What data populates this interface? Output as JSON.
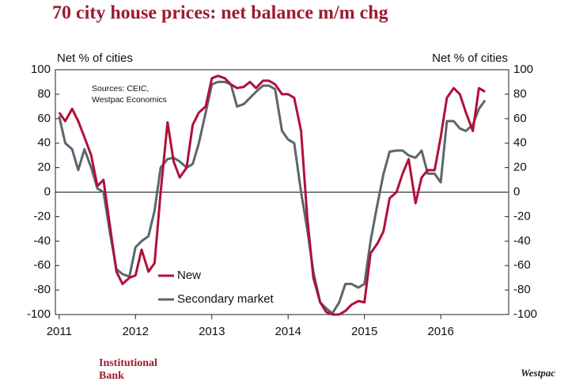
{
  "chart_data": {
    "type": "line",
    "title": "70 city house prices: net balance m/m chg",
    "y_label": "Net % of cities",
    "y2_label": "Net % of cities",
    "annotation": [
      "Sources: CEIC,",
      "Westpac Economics"
    ],
    "x": [
      2011,
      2011.08,
      2011.17,
      2011.25,
      2011.33,
      2011.42,
      2011.5,
      2011.58,
      2011.67,
      2011.75,
      2011.83,
      2011.92,
      2012,
      2012.08,
      2012.17,
      2012.25,
      2012.33,
      2012.42,
      2012.5,
      2012.58,
      2012.67,
      2012.75,
      2012.83,
      2012.92,
      2013,
      2013.08,
      2013.17,
      2013.25,
      2013.33,
      2013.42,
      2013.5,
      2013.58,
      2013.67,
      2013.75,
      2013.83,
      2013.92,
      2014,
      2014.08,
      2014.17,
      2014.25,
      2014.33,
      2014.42,
      2014.5,
      2014.58,
      2014.67,
      2014.75,
      2014.83,
      2014.92,
      2015,
      2015.08,
      2015.17,
      2015.25,
      2015.33,
      2015.42,
      2015.5,
      2015.58,
      2015.67,
      2015.75,
      2015.83,
      2015.92,
      2016,
      2016.08,
      2016.17,
      2016.25,
      2016.33,
      2016.42,
      2016.5,
      2016.58
    ],
    "series": [
      {
        "name": "New",
        "color": "#b0103a",
        "values": [
          65,
          58,
          68,
          58,
          45,
          30,
          5,
          10,
          -30,
          -65,
          -75,
          -70,
          -68,
          -47,
          -65,
          -58,
          0,
          57,
          25,
          12,
          20,
          55,
          65,
          70,
          93,
          95,
          93,
          88,
          85,
          86,
          90,
          85,
          91,
          91,
          88,
          80,
          80,
          77,
          50,
          -20,
          -70,
          -90,
          -98,
          -100,
          -100,
          -97,
          -92,
          -89,
          -90,
          -50,
          -42,
          -32,
          -5,
          0,
          15,
          27,
          -9,
          12,
          18,
          18,
          45,
          77,
          85,
          80,
          65,
          50,
          85,
          82
        ]
      },
      {
        "name": "Secondary market",
        "color": "#5a6670",
        "values": [
          62,
          40,
          35,
          18,
          35,
          20,
          3,
          0,
          -35,
          -63,
          -67,
          -69,
          -45,
          -40,
          -36,
          -15,
          20,
          27,
          28,
          25,
          20,
          23,
          40,
          65,
          88,
          90,
          90,
          88,
          70,
          72,
          77,
          82,
          87,
          87,
          84,
          50,
          43,
          40,
          0,
          -30,
          -65,
          -90,
          -95,
          -99,
          -90,
          -75,
          -75,
          -78,
          -75,
          -40,
          -10,
          15,
          33,
          34,
          34,
          30,
          28,
          34,
          15,
          15,
          8,
          58,
          58,
          52,
          50,
          55,
          68,
          75
        ]
      }
    ],
    "xlim": [
      2010.95,
      2016.89
    ],
    "xticks": [
      2011,
      2012,
      2013,
      2014,
      2015,
      2016
    ],
    "ylim": [
      -100,
      100
    ],
    "yticks": [
      -100,
      -80,
      -60,
      -40,
      -20,
      0,
      20,
      40,
      60,
      80,
      100
    ],
    "y2lim": [
      -100,
      100
    ],
    "y2ticks": [
      -100,
      -80,
      -60,
      -40,
      -20,
      0,
      20,
      40,
      60,
      80,
      100
    ],
    "footer": {
      "brand": [
        "Institutional",
        "Bank"
      ],
      "logo": "Westpac"
    }
  }
}
